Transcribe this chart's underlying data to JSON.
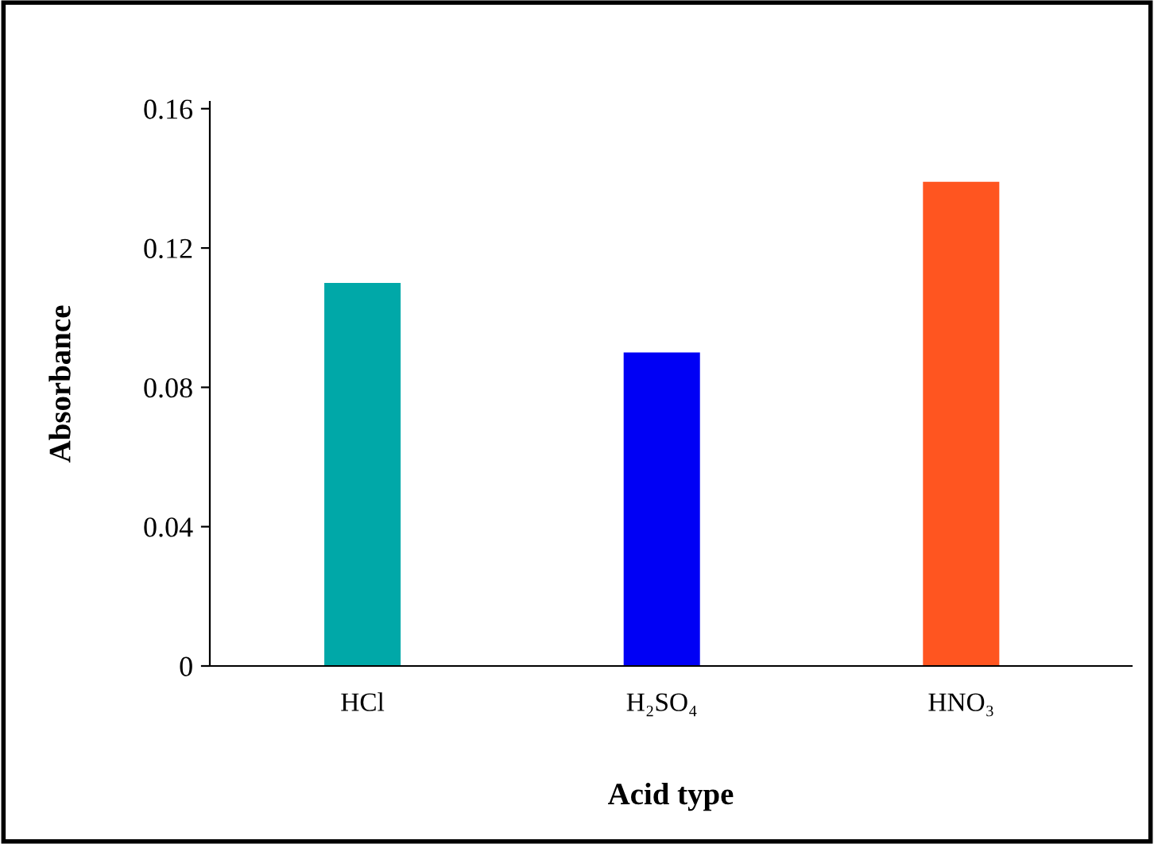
{
  "chart_data": {
    "type": "bar",
    "xlabel": "Acid type",
    "ylabel": "Absorbance",
    "categories": [
      "HCl",
      "H₂SO₄",
      "HNO₃"
    ],
    "values": [
      0.11,
      0.09,
      0.139
    ],
    "colors": [
      "#00a8a8",
      "#0000f5",
      "#ff5520"
    ],
    "ylim": [
      0,
      0.162
    ],
    "yticks": [
      {
        "value": 0,
        "label": "0"
      },
      0.04,
      0.08,
      0.12,
      0.16
    ],
    "grid": false
  }
}
